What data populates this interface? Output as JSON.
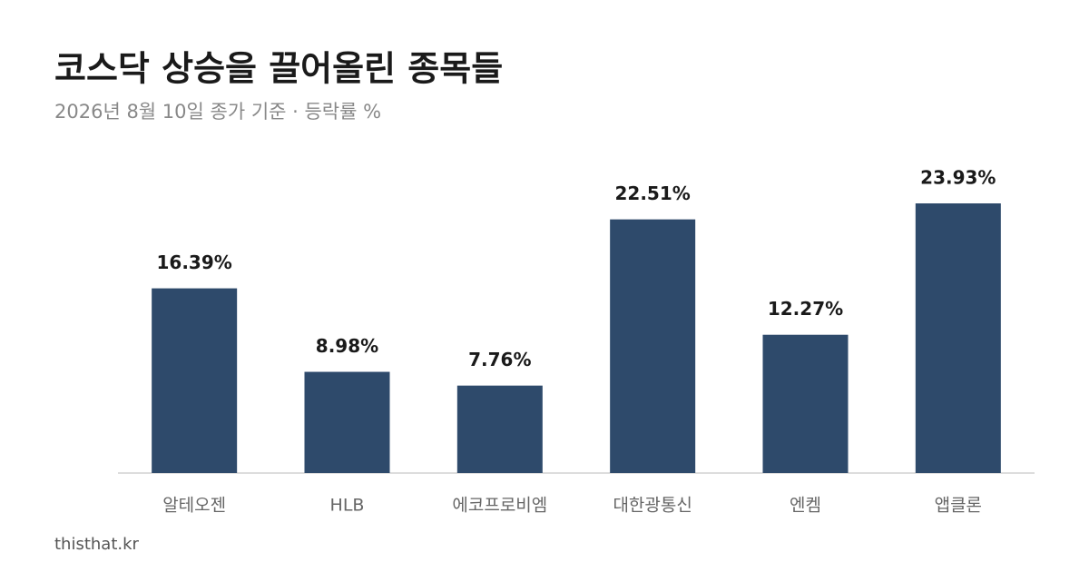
{
  "chart_data": {
    "type": "bar",
    "title": "코스닥 상승을 끌어올린 종목들",
    "subtitle": "2026년 8월 10일 종가 기준 · 등락률 %",
    "categories": [
      "알테오젠",
      "HLB",
      "에코프로비엠",
      "대한광통신",
      "엔켐",
      "앱클론"
    ],
    "values": [
      16.39,
      8.98,
      7.76,
      22.51,
      12.27,
      23.93
    ],
    "value_labels": [
      "16.39%",
      "8.98%",
      "7.76%",
      "22.51%",
      "12.27%",
      "23.93%"
    ],
    "color": "#2e4a6b",
    "source": "thisthat.kr"
  }
}
